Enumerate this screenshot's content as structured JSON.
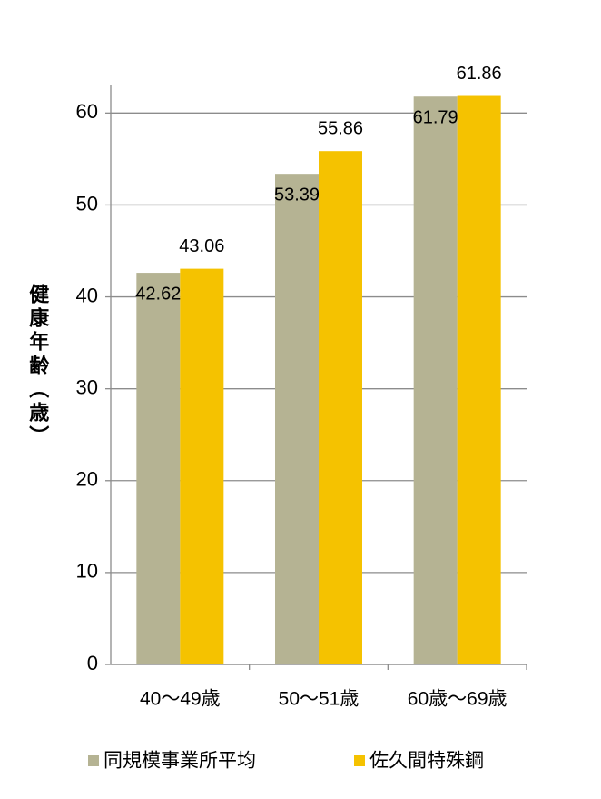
{
  "chart_data": {
    "type": "bar",
    "y_label": "健康年齢（歳）",
    "categories": [
      "40～49歳",
      "50～51歳",
      "60歳～69歳"
    ],
    "series": [
      {
        "name": "同規模事業所平均",
        "color": "#b5b393",
        "values": [
          42.62,
          53.39,
          61.79
        ]
      },
      {
        "name": "佐久間特殊鋼",
        "color": "#f5c200",
        "values": [
          43.06,
          55.86,
          61.86
        ]
      }
    ],
    "ylim": [
      0,
      63
    ],
    "yticks": [
      0,
      10,
      20,
      30,
      40,
      50,
      60
    ],
    "grid": true,
    "legend": "bottom"
  }
}
